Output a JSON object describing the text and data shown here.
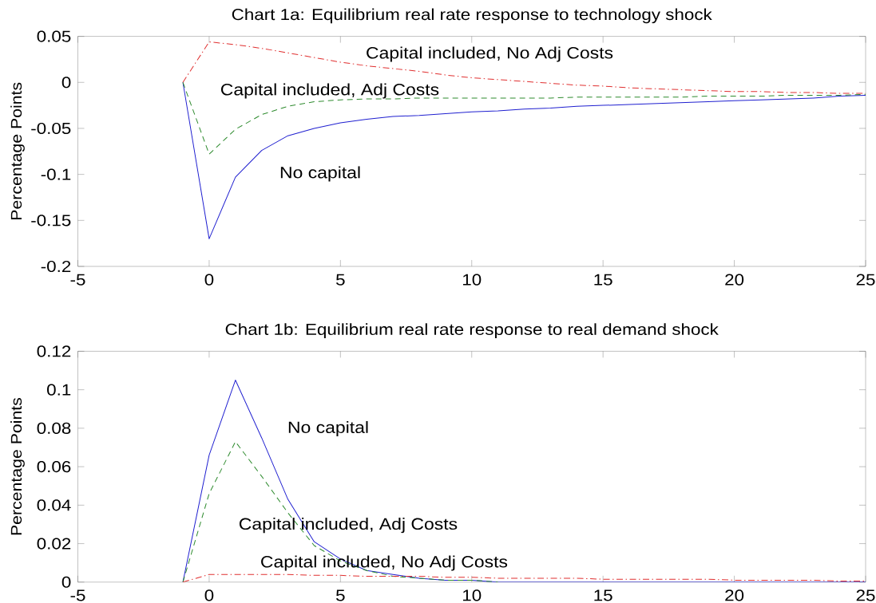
{
  "chart_data": [
    {
      "type": "line",
      "title": "Chart 1a: Equilibrium real rate response to technology shock",
      "ylabel": "Percentage Points",
      "x": [
        -1,
        0,
        1,
        2,
        3,
        4,
        5,
        6,
        7,
        8,
        9,
        10,
        11,
        12,
        13,
        14,
        15,
        16,
        17,
        18,
        19,
        20,
        21,
        22,
        23,
        24,
        25
      ],
      "series": [
        {
          "name": "No capital",
          "color": "#2020d0",
          "line_style": "solid",
          "values": [
            0,
            -0.17,
            -0.103,
            -0.074,
            -0.058,
            -0.05,
            -0.044,
            -0.04,
            -0.037,
            -0.036,
            -0.034,
            -0.032,
            -0.031,
            -0.029,
            -0.028,
            -0.026,
            -0.025,
            -0.024,
            -0.023,
            -0.022,
            -0.021,
            -0.02,
            -0.019,
            -0.018,
            -0.017,
            -0.015,
            -0.014
          ]
        },
        {
          "name": "Capital included, Adj Costs",
          "color": "#2e8b2e",
          "line_style": "dashed",
          "values": [
            0,
            -0.078,
            -0.051,
            -0.035,
            -0.026,
            -0.021,
            -0.019,
            -0.018,
            -0.018,
            -0.017,
            -0.017,
            -0.017,
            -0.017,
            -0.017,
            -0.017,
            -0.016,
            -0.016,
            -0.016,
            -0.016,
            -0.016,
            -0.015,
            -0.015,
            -0.015,
            -0.014,
            -0.014,
            -0.014,
            -0.013
          ]
        },
        {
          "name": "Capital included, No Adj Costs",
          "color": "#e03030",
          "line_style": "dashdot",
          "values": [
            0,
            0.044,
            0.041,
            0.037,
            0.032,
            0.027,
            0.022,
            0.018,
            0.015,
            0.012,
            0.008,
            0.005,
            0.003,
            0.001,
            -0.001,
            -0.003,
            -0.004,
            -0.006,
            -0.007,
            -0.008,
            -0.009,
            -0.01,
            -0.01,
            -0.011,
            -0.011,
            -0.012,
            -0.012
          ]
        }
      ],
      "xlim": [
        -5,
        25
      ],
      "ylim": [
        -0.2,
        0.05
      ],
      "xticks": [
        -5,
        0,
        5,
        10,
        15,
        20,
        25
      ],
      "yticks": [
        -0.2,
        -0.15,
        -0.1,
        -0.05,
        0,
        0.05
      ]
    },
    {
      "type": "line",
      "title": "Chart 1b: Equilibrium real rate response to real demand shock",
      "ylabel": "Percentage Points",
      "x": [
        -1,
        0,
        1,
        2,
        3,
        4,
        5,
        6,
        7,
        8,
        9,
        10,
        11,
        12,
        13,
        14,
        15,
        16,
        17,
        18,
        19,
        20,
        21,
        22,
        23,
        24,
        25
      ],
      "series": [
        {
          "name": "No capital",
          "color": "#2020d0",
          "line_style": "solid",
          "values": [
            0,
            0.066,
            0.105,
            0.075,
            0.043,
            0.021,
            0.012,
            0.006,
            0.004,
            0.002,
            0.001,
            0.001,
            0,
            0,
            0,
            0,
            0,
            0,
            0,
            0,
            0,
            0,
            0,
            0,
            0,
            0,
            0
          ]
        },
        {
          "name": "Capital included, Adj Costs",
          "color": "#2e8b2e",
          "line_style": "dashed",
          "values": [
            0,
            0.046,
            0.073,
            0.055,
            0.036,
            0.019,
            0.011,
            0.006,
            0.003,
            0.002,
            0.001,
            0.001,
            0,
            null,
            null,
            null,
            null,
            null,
            null,
            null,
            null,
            null,
            null,
            null,
            null,
            null,
            null
          ]
        },
        {
          "name": "Capital included, No Adj Costs",
          "color": "#e03030",
          "line_style": "dashdot",
          "values": [
            0,
            0.004,
            0.004,
            0.004,
            0.004,
            0.0035,
            0.0035,
            0.003,
            0.003,
            0.003,
            0.0025,
            0.0025,
            0.002,
            0.002,
            0.002,
            0.002,
            0.0015,
            0.0015,
            0.0015,
            0.0015,
            0.0015,
            0.001,
            0.001,
            0.001,
            0.001,
            0.0005,
            0.0005
          ]
        }
      ],
      "xlim": [
        -5,
        25
      ],
      "ylim": [
        0,
        0.12
      ],
      "xticks": [
        -5,
        0,
        5,
        10,
        15,
        20,
        25
      ],
      "yticks": [
        0,
        0.02,
        0.04,
        0.06,
        0.08,
        0.1,
        0.12
      ]
    }
  ]
}
